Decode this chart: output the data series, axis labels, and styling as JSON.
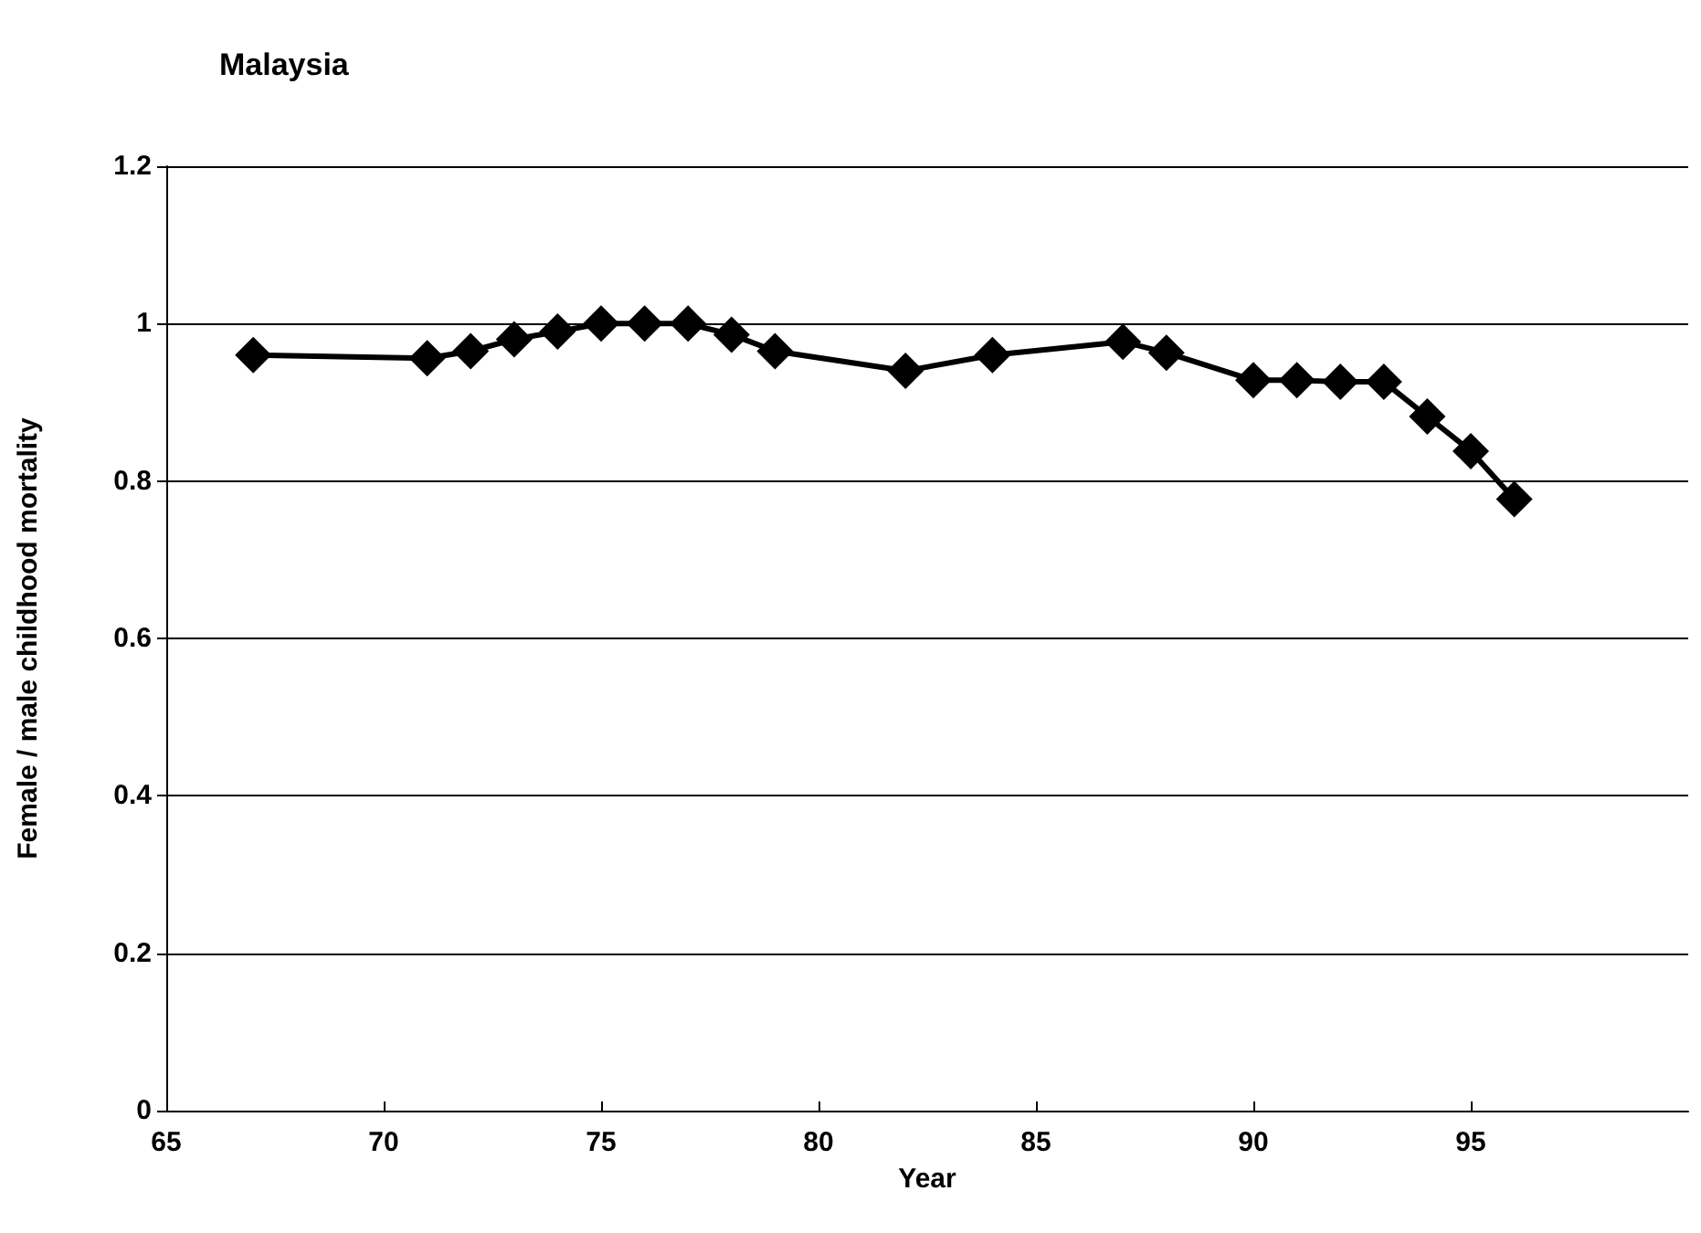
{
  "chart_data": {
    "type": "line",
    "title": "Malaysia",
    "xlabel": "Year",
    "ylabel": "Female / male childhood mortality",
    "x": [
      67,
      71,
      72,
      73,
      74,
      75,
      76,
      77,
      78,
      79,
      82,
      84,
      87,
      88,
      90,
      91,
      92,
      93,
      94,
      95,
      96
    ],
    "series": [
      {
        "color": "#000000",
        "values": [
          0.96,
          0.956,
          0.965,
          0.98,
          0.99,
          1.0,
          1.0,
          1.0,
          0.986,
          0.965,
          0.94,
          0.96,
          0.977,
          0.963,
          0.928,
          0.928,
          0.926,
          0.926,
          0.882,
          0.838,
          0.777
        ]
      }
    ],
    "xlim": [
      65,
      100
    ],
    "xticks": [
      65,
      70,
      75,
      80,
      85,
      90,
      95
    ],
    "ylim": [
      0,
      1.2
    ],
    "yticks": [
      0,
      0.2,
      0.4,
      0.6,
      0.8,
      1,
      1.2
    ],
    "grid": "y",
    "marker": "diamond",
    "line_style": "solid"
  }
}
